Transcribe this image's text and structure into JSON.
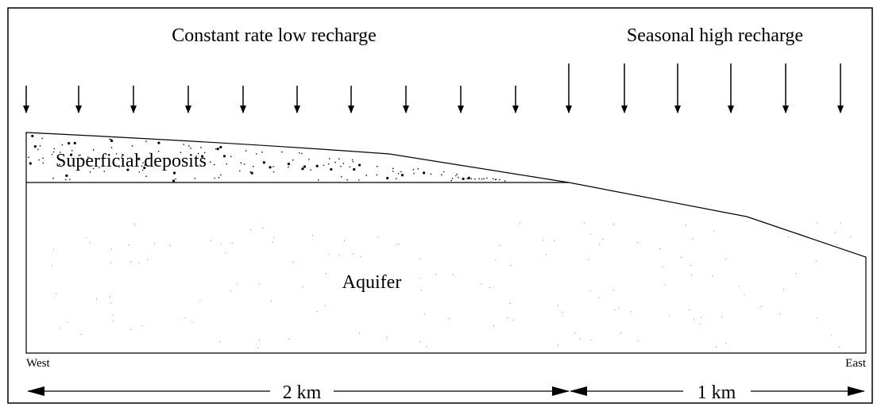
{
  "header": {
    "left": "Constant rate low recharge",
    "right": "Seasonal high recharge"
  },
  "layers": {
    "upper": "Superficial deposits",
    "lower": "Aquifer"
  },
  "ends": {
    "west": "West",
    "east": "East"
  },
  "scale": {
    "left": "2 km",
    "right": "1 km"
  }
}
